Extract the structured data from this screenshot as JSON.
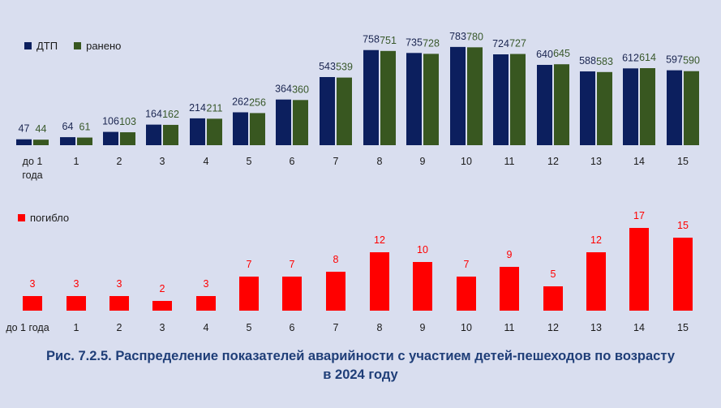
{
  "colors": {
    "dtp": "#0c1f5e",
    "injured": "#385720",
    "killed": "#ff0000",
    "injured_label": "#38582a",
    "dtp_label": "#1a2550"
  },
  "chart_data": [
    {
      "type": "bar",
      "categories": [
        "до 1 года",
        "1",
        "2",
        "3",
        "4",
        "5",
        "6",
        "7",
        "8",
        "9",
        "10",
        "11",
        "12",
        "13",
        "14",
        "15"
      ],
      "series": [
        {
          "name": "ДТП",
          "values": [
            47,
            64,
            106,
            164,
            214,
            262,
            364,
            543,
            758,
            735,
            783,
            724,
            640,
            588,
            612,
            597
          ]
        },
        {
          "name": "ранено",
          "values": [
            44,
            61,
            103,
            162,
            211,
            256,
            360,
            539,
            751,
            728,
            780,
            727,
            645,
            583,
            614,
            590
          ]
        }
      ],
      "legend": "top-left",
      "ylim": [
        0,
        800
      ]
    },
    {
      "type": "bar",
      "categories": [
        "до 1 года",
        "1",
        "2",
        "3",
        "4",
        "5",
        "6",
        "7",
        "8",
        "9",
        "10",
        "11",
        "12",
        "13",
        "14",
        "15"
      ],
      "series": [
        {
          "name": "погибло",
          "values": [
            3,
            3,
            3,
            2,
            3,
            7,
            7,
            8,
            12,
            10,
            7,
            9,
            5,
            12,
            17,
            15
          ]
        }
      ],
      "legend": "top-left",
      "ylim": [
        0,
        17
      ]
    }
  ],
  "caption": {
    "line1": "Рис. 7.2.5. Распределение показателей аварийности с участием детей-пешеходов по возрасту",
    "line2": "в 2024 году"
  }
}
